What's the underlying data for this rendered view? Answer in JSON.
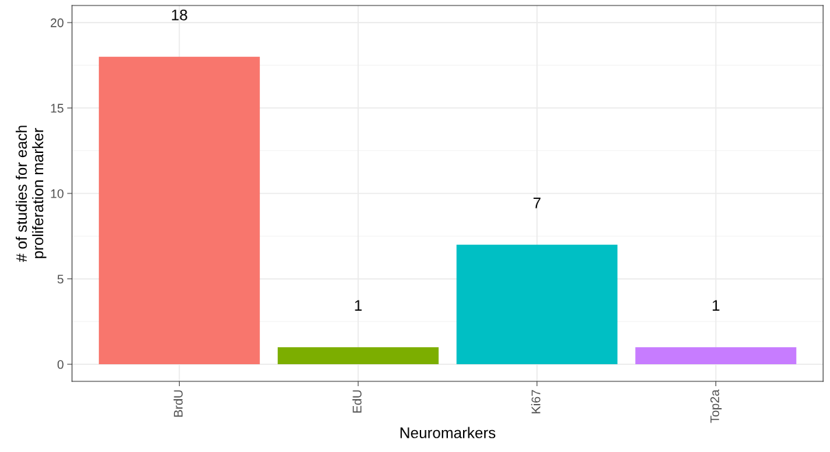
{
  "chart_data": {
    "type": "bar",
    "xlabel": "Neuromarkers",
    "ylabel": "# of studies for each\nproliferation marker",
    "categories": [
      "BrdU",
      "EdU",
      "Ki67",
      "Top2a"
    ],
    "values": [
      18,
      1,
      7,
      1
    ],
    "colors": [
      "#f8766d",
      "#7cae00",
      "#00bfc4",
      "#c77cff"
    ],
    "ylim": [
      -1,
      21
    ],
    "yticks": [
      0,
      5,
      10,
      15,
      20
    ],
    "grid": true,
    "data_labels": true
  }
}
